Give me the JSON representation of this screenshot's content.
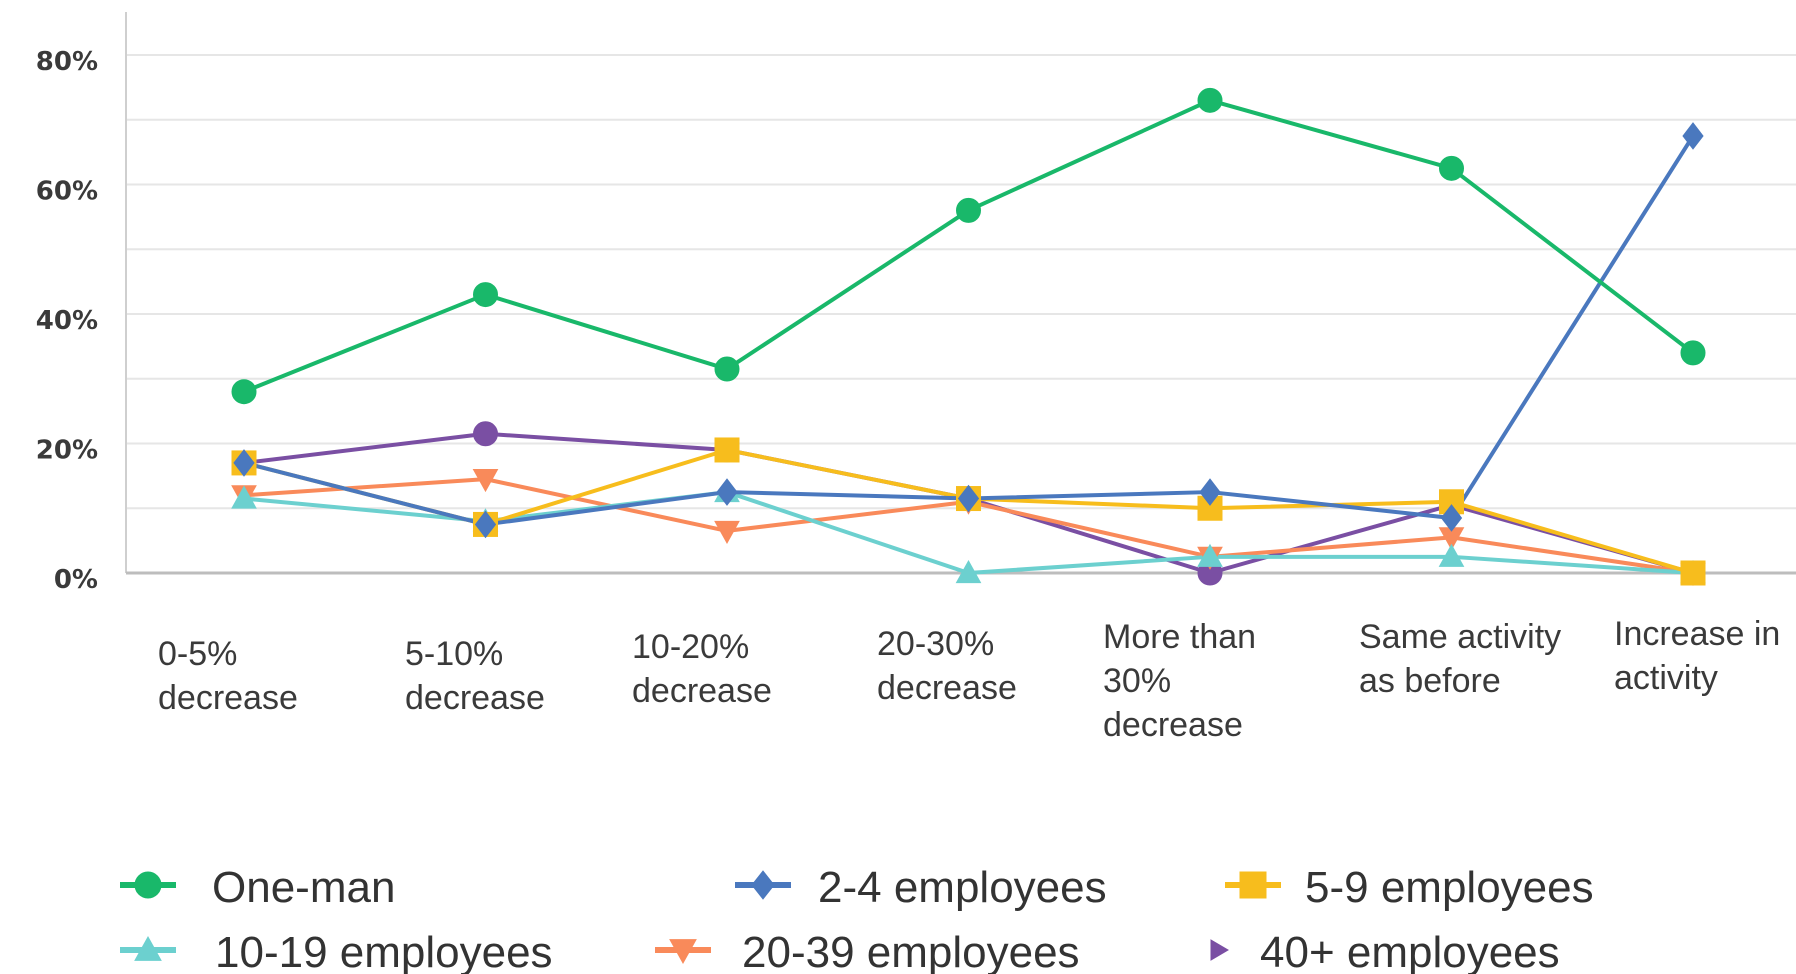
{
  "chart_data": {
    "type": "line",
    "categories": [
      [
        "0-5%",
        "decrease"
      ],
      [
        "5-10%",
        "decrease"
      ],
      [
        "10-20%",
        "decrease"
      ],
      [
        "20-30%",
        "decrease"
      ],
      [
        "More than",
        "30%",
        "decrease"
      ],
      [
        "Same activity",
        "as before"
      ],
      [
        "Increase in",
        "activity"
      ]
    ],
    "ylim": [
      0,
      80
    ],
    "yticks": [
      "0%",
      "20%",
      "40%",
      "60%",
      "80%"
    ],
    "grid": true,
    "legend_position": "bottom",
    "series": [
      {
        "name": "One-man",
        "color": "#19b86a",
        "marker": "circle",
        "values": [
          28,
          43,
          31.5,
          56,
          73,
          62.5,
          34
        ]
      },
      {
        "name": "2-4 employees",
        "color": "#4a78be",
        "marker": "diamond",
        "values": [
          17,
          7.5,
          12.5,
          11.5,
          12.5,
          8.5,
          67.5
        ]
      },
      {
        "name": "5-9 employees",
        "color": "#f7bd1d",
        "marker": "square",
        "values": [
          17,
          7.5,
          19,
          11.5,
          10,
          11,
          0
        ]
      },
      {
        "name": "10-19 employees",
        "color": "#6cd0cf",
        "marker": "triangle-up",
        "values": [
          11.5,
          8,
          12.5,
          0,
          2.5,
          2.5,
          0
        ]
      },
      {
        "name": "20-39 employees",
        "color": "#f98a5a",
        "marker": "triangle-down",
        "values": [
          12,
          14.5,
          6.5,
          11,
          2.5,
          5.5,
          0
        ]
      },
      {
        "name": "40+ employees",
        "color": "#7a4fa3",
        "marker": "circle",
        "values": [
          17,
          21.5,
          19,
          11.5,
          0,
          10.5,
          0
        ]
      }
    ]
  }
}
